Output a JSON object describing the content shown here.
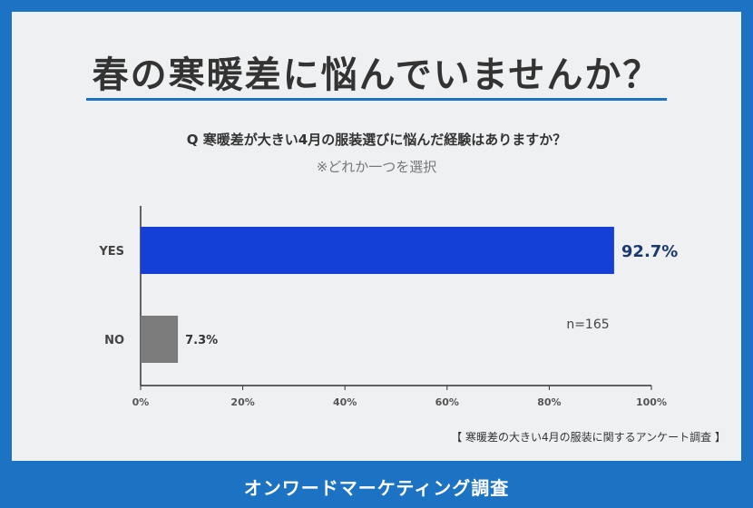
{
  "headline": "春の寒暖差に悩んでいませんか？",
  "question": "Q 寒暖差が大きい4月の服装選びに悩んだ経験はありますか？",
  "note": "※どれか一つを選択",
  "source": "【 寒暖差の大きい4月の服装に関するアンケート調査 】",
  "footer": "オンワードマーケティング調査",
  "colors": {
    "accent": "#1d73c3",
    "yes_bar": "#1440d8",
    "no_bar": "#7b7b7b",
    "yes_label": "#1a3a6e"
  },
  "chart_data": {
    "type": "bar",
    "orientation": "horizontal",
    "categories": [
      "YES",
      "NO"
    ],
    "values": [
      92.7,
      7.3
    ],
    "value_labels": [
      "92.7%",
      "7.3%"
    ],
    "x_ticks": [
      "0%",
      "20%",
      "40%",
      "60%",
      "80%",
      "100%"
    ],
    "xlim": [
      0,
      100
    ],
    "annotation": "n=165",
    "title": "",
    "xlabel": "",
    "ylabel": ""
  }
}
